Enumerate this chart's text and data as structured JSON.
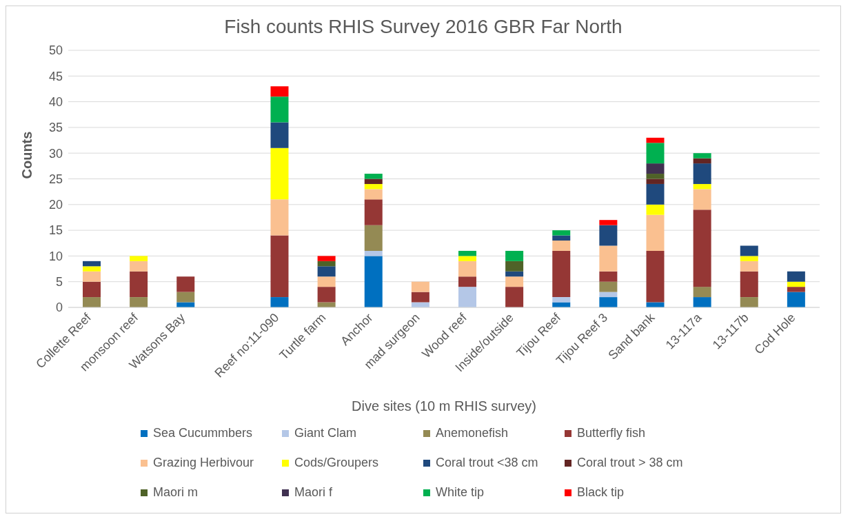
{
  "chart_data": {
    "type": "bar",
    "title": "Fish counts RHIS Survey 2016 GBR Far North",
    "xlabel": "Dive sites (10 m RHIS survey)",
    "ylabel": "Counts",
    "stacked": true,
    "grid": "y",
    "legend": "bottom",
    "ylim": [
      0,
      50
    ],
    "yticks": [
      0,
      5,
      10,
      15,
      20,
      25,
      30,
      35,
      40,
      45,
      50
    ],
    "categories": [
      "Collette Reef",
      "monsoon reef",
      "Watsons Bay",
      null,
      "Reef no:11-090",
      "Turtle farm",
      "Anchor",
      "mad surgeon",
      "Wood reef",
      "Inside/outside",
      "Tijou Reef",
      "Tijou Reef 3",
      "Sand bank",
      "13-117a",
      "13-117b",
      "Cod Hole"
    ],
    "series": [
      {
        "name": "Sea Cucummbers",
        "color": "#0070c0",
        "values": [
          0,
          0,
          1,
          null,
          2,
          0,
          10,
          0,
          0,
          0,
          1,
          2,
          1,
          2,
          0,
          3
        ]
      },
      {
        "name": "Giant Clam",
        "color": "#b4c7e7",
        "values": [
          0,
          0,
          0,
          null,
          0,
          0,
          1,
          1,
          4,
          0,
          1,
          1,
          0,
          0,
          0,
          0
        ]
      },
      {
        "name": "Anemonefish",
        "color": "#948a54",
        "values": [
          2,
          2,
          2,
          null,
          0,
          1,
          5,
          0,
          0,
          0,
          0,
          2,
          0,
          2,
          2,
          0
        ]
      },
      {
        "name": "Butterfly fish",
        "color": "#953735",
        "values": [
          3,
          5,
          3,
          null,
          12,
          3,
          5,
          2,
          2,
          4,
          9,
          2,
          10,
          15,
          5,
          1
        ]
      },
      {
        "name": "Grazing Herbivour",
        "color": "#fac090",
        "values": [
          2,
          2,
          0,
          null,
          7,
          2,
          2,
          2,
          3,
          2,
          2,
          5,
          7,
          4,
          2,
          0
        ]
      },
      {
        "name": "Cods/Groupers",
        "color": "#ffff00",
        "values": [
          1,
          1,
          0,
          null,
          10,
          0,
          1,
          0,
          1,
          0,
          0,
          0,
          2,
          1,
          1,
          1
        ]
      },
      {
        "name": "Coral trout <38 cm",
        "color": "#1f497d",
        "values": [
          1,
          0,
          0,
          null,
          5,
          2,
          0,
          0,
          0,
          1,
          1,
          4,
          4,
          4,
          2,
          2
        ]
      },
      {
        "name": "Coral trout > 38 cm",
        "color": "#632523",
        "values": [
          0,
          0,
          0,
          null,
          0,
          0,
          1,
          0,
          0,
          0,
          0,
          0,
          1,
          1,
          0,
          0
        ]
      },
      {
        "name": "Maori m",
        "color": "#4f6228",
        "values": [
          0,
          0,
          0,
          null,
          0,
          1,
          0,
          0,
          0,
          2,
          0,
          0,
          1,
          0,
          0,
          0
        ]
      },
      {
        "name": "Maori f",
        "color": "#403151",
        "values": [
          0,
          0,
          0,
          null,
          0,
          0,
          0,
          0,
          0,
          0,
          0,
          0,
          2,
          0,
          0,
          0
        ]
      },
      {
        "name": "White tip",
        "color": "#00b050",
        "values": [
          0,
          0,
          0,
          null,
          5,
          0,
          1,
          0,
          1,
          2,
          1,
          0,
          4,
          1,
          0,
          0
        ]
      },
      {
        "name": "Black tip",
        "color": "#ff0000",
        "values": [
          0,
          0,
          0,
          null,
          2,
          1,
          0,
          0,
          0,
          0,
          0,
          1,
          1,
          0,
          0,
          0
        ]
      }
    ]
  }
}
